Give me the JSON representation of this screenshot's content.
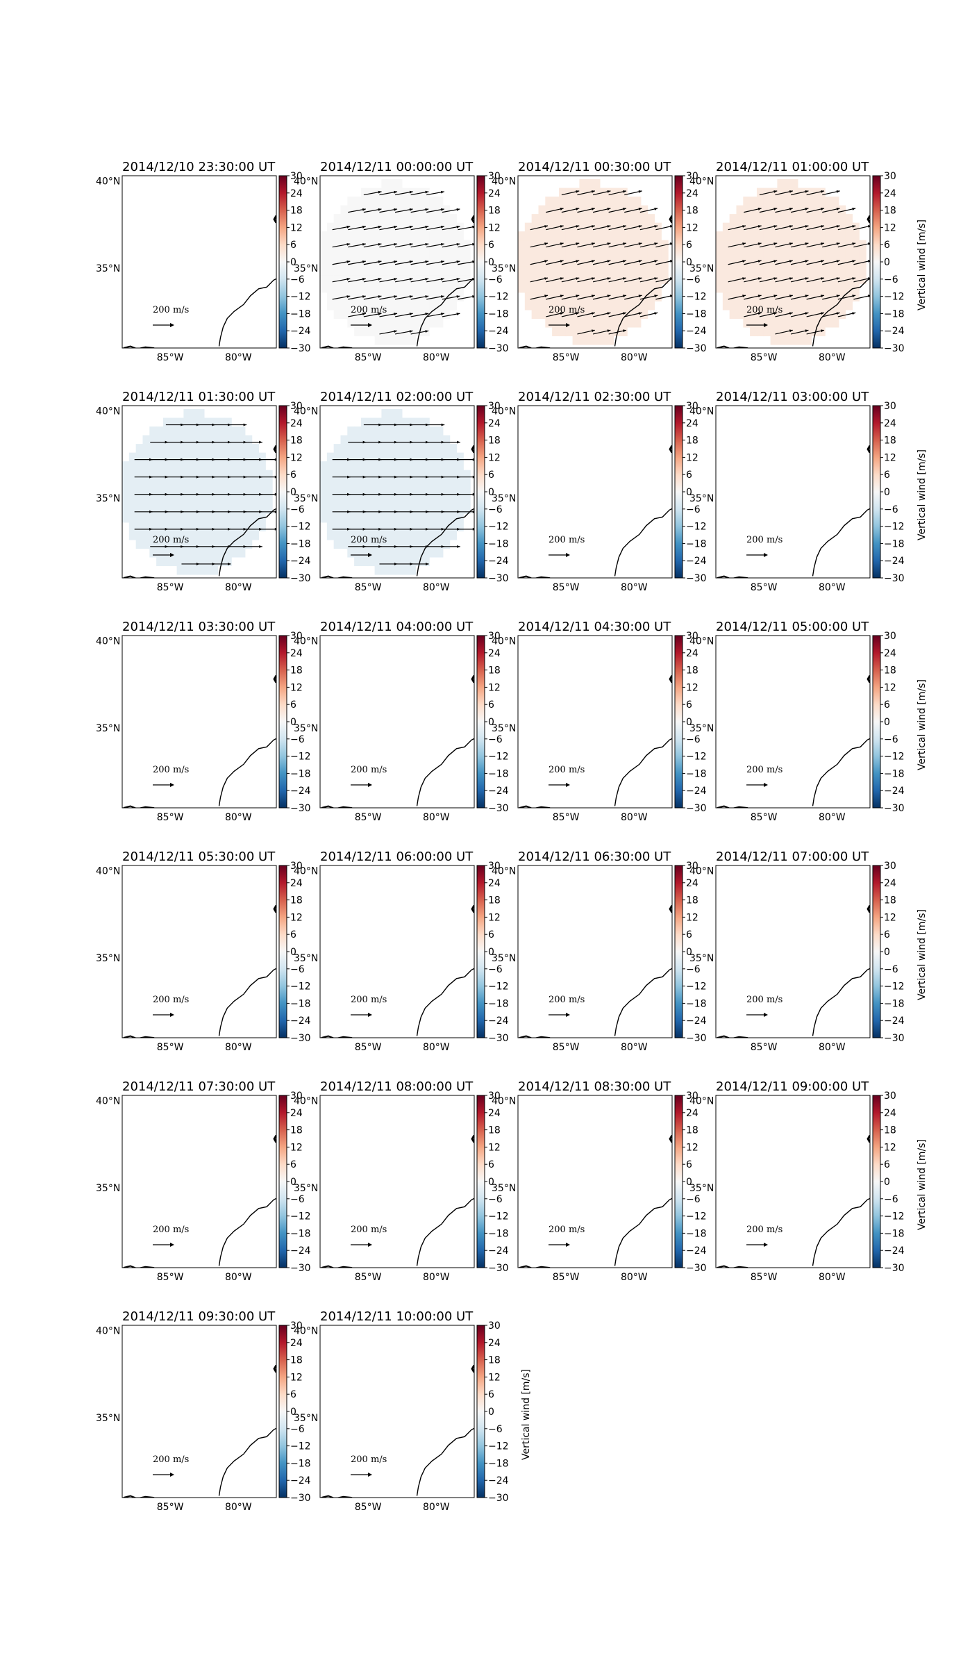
{
  "chart_data": {
    "type": "heatmap",
    "description_units": {
      "colorbar_label": "Vertical wind [m/s]",
      "colorbar_range": [
        -30,
        30
      ],
      "colorbar_ticks": [
        30,
        24,
        18,
        12,
        6,
        0,
        -6,
        -12,
        -18,
        -24,
        -30
      ],
      "lat_ticks": [
        "40°N",
        "35°N"
      ],
      "lon_ticks": [
        "85°W",
        "80°W"
      ],
      "reference_vector_label": "200 m/s",
      "colormap": "RdBu_r"
    },
    "panels": [
      {
        "title": "2014/12/10 23:30:00 UT",
        "fill_value": null,
        "vectors": false
      },
      {
        "title": "2014/12/11 00:00:00 UT",
        "fill_value": 0,
        "vectors": true
      },
      {
        "title": "2014/12/11 00:30:00 UT",
        "fill_value": 3,
        "vectors": true
      },
      {
        "title": "2014/12/11 01:00:00 UT",
        "fill_value": 3,
        "vectors": true
      },
      {
        "title": "2014/12/11 01:30:00 UT",
        "fill_value": -3,
        "vectors": true
      },
      {
        "title": "2014/12/11 02:00:00 UT",
        "fill_value": -3,
        "vectors": true
      },
      {
        "title": "2014/12/11 02:30:00 UT",
        "fill_value": null,
        "vectors": false
      },
      {
        "title": "2014/12/11 03:00:00 UT",
        "fill_value": null,
        "vectors": false
      },
      {
        "title": "2014/12/11 03:30:00 UT",
        "fill_value": null,
        "vectors": false
      },
      {
        "title": "2014/12/11 04:00:00 UT",
        "fill_value": null,
        "vectors": false
      },
      {
        "title": "2014/12/11 04:30:00 UT",
        "fill_value": null,
        "vectors": false
      },
      {
        "title": "2014/12/11 05:00:00 UT",
        "fill_value": null,
        "vectors": false
      },
      {
        "title": "2014/12/11 05:30:00 UT",
        "fill_value": null,
        "vectors": false
      },
      {
        "title": "2014/12/11 06:00:00 UT",
        "fill_value": null,
        "vectors": false
      },
      {
        "title": "2014/12/11 06:30:00 UT",
        "fill_value": null,
        "vectors": false
      },
      {
        "title": "2014/12/11 07:00:00 UT",
        "fill_value": null,
        "vectors": false
      },
      {
        "title": "2014/12/11 07:30:00 UT",
        "fill_value": null,
        "vectors": false
      },
      {
        "title": "2014/12/11 08:00:00 UT",
        "fill_value": null,
        "vectors": false
      },
      {
        "title": "2014/12/11 08:30:00 UT",
        "fill_value": null,
        "vectors": false
      },
      {
        "title": "2014/12/11 09:00:00 UT",
        "fill_value": null,
        "vectors": false
      },
      {
        "title": "2014/12/11 09:30:00 UT",
        "fill_value": null,
        "vectors": false
      },
      {
        "title": "2014/12/11 10:00:00 UT",
        "fill_value": null,
        "vectors": false
      }
    ]
  }
}
